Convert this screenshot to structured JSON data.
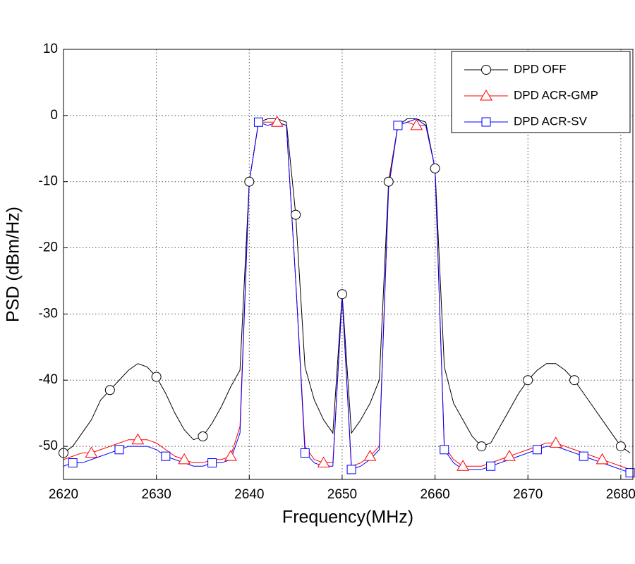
{
  "chart_data": {
    "type": "line",
    "xlabel": "Frequency(MHz)",
    "ylabel": "PSD (dBm/Hz)",
    "x": [
      2620,
      2621,
      2622,
      2623,
      2624,
      2625,
      2626,
      2627,
      2628,
      2629,
      2630,
      2631,
      2632,
      2633,
      2634,
      2635,
      2636,
      2637,
      2638,
      2639,
      2640,
      2641,
      2642,
      2643,
      2644,
      2645,
      2646,
      2647,
      2648,
      2649,
      2650,
      2651,
      2652,
      2653,
      2654,
      2655,
      2656,
      2657,
      2658,
      2659,
      2660,
      2661,
      2662,
      2663,
      2664,
      2665,
      2666,
      2667,
      2668,
      2669,
      2670,
      2671,
      2672,
      2673,
      2674,
      2675,
      2676,
      2677,
      2678,
      2679,
      2680,
      2681
    ],
    "series": [
      {
        "name": "DPD OFF",
        "color": "#000000",
        "marker": "circle",
        "values": [
          -51,
          -50,
          -48,
          -46,
          -43,
          -41.5,
          -40,
          -38.5,
          -37.5,
          -38,
          -39.5,
          -42,
          -45,
          -47.5,
          -49,
          -48.5,
          -46.5,
          -44,
          -41,
          -38.5,
          -10,
          -1,
          -0.5,
          -0.5,
          -1,
          -15,
          -38,
          -43,
          -46,
          -48,
          -27,
          -48,
          -46,
          -43.5,
          -40,
          -10,
          -1.5,
          -0.5,
          -0.5,
          -1,
          -8,
          -38,
          -43.5,
          -46,
          -48.5,
          -50,
          -49.5,
          -47,
          -44.5,
          -42,
          -40,
          -38.5,
          -37.5,
          -37.5,
          -38.5,
          -40,
          -42,
          -44,
          -46,
          -48,
          -50,
          -51
        ]
      },
      {
        "name": "DPD ACR-GMP",
        "color": "#ff0000",
        "marker": "triangle",
        "values": [
          -52,
          -51.5,
          -51,
          -51,
          -50.5,
          -50,
          -49.5,
          -49,
          -49,
          -49,
          -49.5,
          -50.5,
          -51.5,
          -52,
          -52.5,
          -52.5,
          -52,
          -52,
          -51.5,
          -47,
          -10,
          -1,
          -1,
          -1,
          -1.5,
          -25,
          -50,
          -52,
          -52.5,
          -52.5,
          -27.5,
          -53,
          -52.5,
          -51.5,
          -50,
          -10.5,
          -1.5,
          -1,
          -1.5,
          -1.5,
          -8,
          -50,
          -52,
          -53,
          -53,
          -53,
          -52.5,
          -52,
          -51.5,
          -51,
          -50.5,
          -50,
          -49.5,
          -49.5,
          -50,
          -50.5,
          -51,
          -51.5,
          -52,
          -52.5,
          -53,
          -53.5
        ]
      },
      {
        "name": "DPD ACR-SV",
        "color": "#0000ff",
        "marker": "square",
        "values": [
          -53,
          -52.5,
          -52.5,
          -52,
          -51.5,
          -51,
          -50.5,
          -50,
          -50,
          -50,
          -50.5,
          -51.5,
          -52,
          -52.5,
          -53,
          -53,
          -52.5,
          -52.5,
          -52,
          -48,
          -10,
          -1,
          -1.5,
          -1,
          -1.5,
          -25,
          -51,
          -52.5,
          -53,
          -53,
          -27.3,
          -53.5,
          -53,
          -52,
          -50.5,
          -11,
          -1.5,
          -1,
          -0.5,
          -1.5,
          -8,
          -50.5,
          -52.5,
          -53.5,
          -53.5,
          -53.5,
          -53,
          -52.5,
          -52,
          -51.5,
          -51,
          -50.5,
          -50,
          -50,
          -50.5,
          -51,
          -51.5,
          -52,
          -52.5,
          -53,
          -53.5,
          -54
        ]
      }
    ],
    "xlim": [
      2620,
      2681.3
    ],
    "ylim": [
      -55,
      10
    ],
    "xticks": [
      2620,
      2630,
      2640,
      2650,
      2660,
      2670,
      2680
    ],
    "yticks": [
      -50,
      -40,
      -30,
      -20,
      -10,
      0,
      10
    ],
    "grid": true,
    "legend": "upper right"
  }
}
